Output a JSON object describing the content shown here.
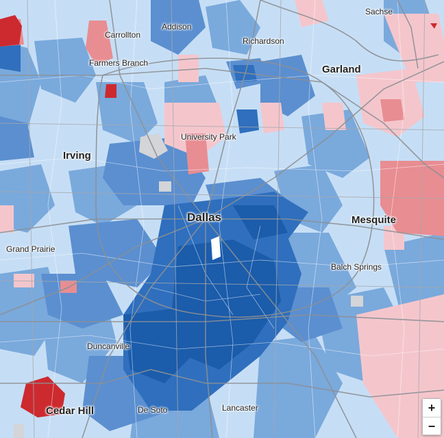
{
  "colors": {
    "base": "#c6def5",
    "light_blue": "#b3d2ef",
    "mid_blue": "#7aa9dc",
    "blue": "#5b8fd0",
    "strong_blue": "#2f6fbd",
    "dark_blue": "#1b5cab",
    "light_red": "#f4c6cc",
    "mid_red": "#e88d92",
    "dark_red": "#cc2a2f",
    "road": "#8c8f94",
    "no_data": "#d3d5d8"
  },
  "places": [
    {
      "id": "sachse",
      "label": "Sachse",
      "size": "small"
    },
    {
      "id": "carrollton",
      "label": "Carrollton",
      "size": "small"
    },
    {
      "id": "addison",
      "label": "Addison",
      "size": "small"
    },
    {
      "id": "richardson",
      "label": "Richardson",
      "size": "small"
    },
    {
      "id": "garland",
      "label": "Garland",
      "size": "med"
    },
    {
      "id": "farmers-branch",
      "label": "Farmers Branch",
      "size": "small"
    },
    {
      "id": "university-park",
      "label": "University Park",
      "size": "small"
    },
    {
      "id": "irving",
      "label": "Irving",
      "size": "med"
    },
    {
      "id": "dallas",
      "label": "Dallas",
      "size": "big"
    },
    {
      "id": "mesquite",
      "label": "Mesquite",
      "size": "med"
    },
    {
      "id": "grand-prairie",
      "label": "Grand Prairie",
      "size": "small"
    },
    {
      "id": "balch-springs",
      "label": "Balch Springs",
      "size": "small"
    },
    {
      "id": "duncanville",
      "label": "Duncanville",
      "size": "small"
    },
    {
      "id": "cedar-hill",
      "label": "Cedar Hill",
      "size": "med"
    },
    {
      "id": "de-soto",
      "label": "De Soto",
      "size": "small"
    },
    {
      "id": "lancaster",
      "label": "Lancaster",
      "size": "small"
    }
  ],
  "zoom": {
    "in_label": "+",
    "out_label": "−"
  }
}
